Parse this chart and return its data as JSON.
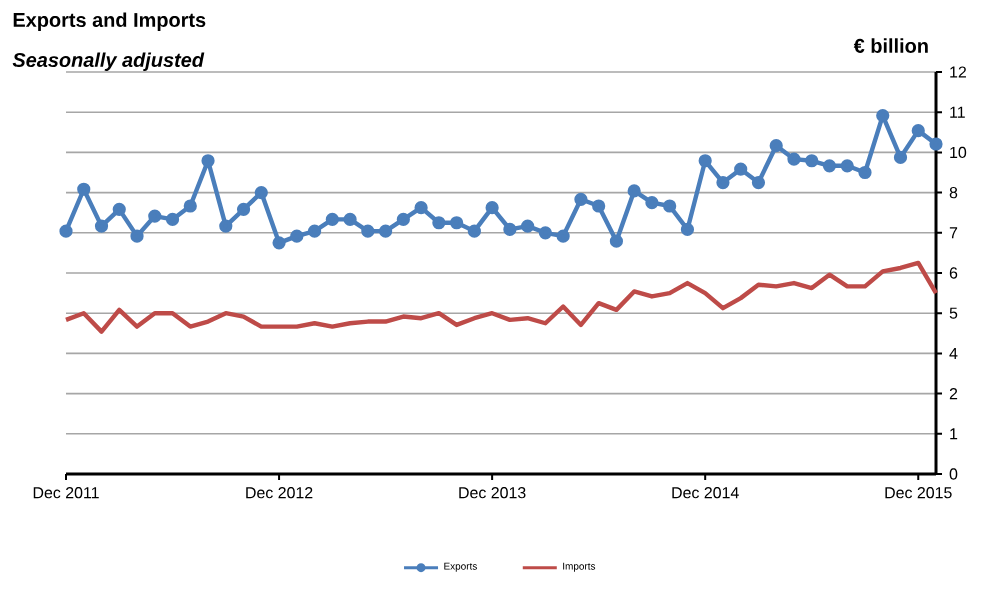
{
  "chart_data": {
    "type": "line",
    "title": "Exports  and Imports",
    "subtitle": "Seasonally  adjusted",
    "ylabel": "€ billion",
    "categories": [
      "Dec 2011",
      null,
      null,
      null,
      null,
      null,
      null,
      null,
      null,
      null,
      null,
      null,
      "Dec 2012",
      null,
      null,
      null,
      null,
      null,
      null,
      null,
      null,
      null,
      null,
      null,
      "Dec 2013",
      null,
      null,
      null,
      null,
      null,
      null,
      null,
      null,
      null,
      null,
      null,
      "Dec 2014",
      null,
      null,
      null,
      null,
      null,
      null,
      null,
      null,
      null,
      null,
      null,
      "Dec 2015",
      null
    ],
    "series": [
      {
        "name": "Exports",
        "color": "#4a7ebb",
        "marker": "circle",
        "values": [
          7.25,
          8.5,
          7.4,
          7.9,
          7.1,
          7.7,
          7.6,
          8.0,
          9.35,
          7.4,
          7.9,
          8.4,
          6.9,
          7.1,
          7.25,
          7.6,
          7.6,
          7.25,
          7.25,
          7.6,
          7.95,
          7.5,
          7.5,
          7.25,
          7.95,
          7.3,
          7.4,
          7.2,
          7.1,
          8.2,
          8.0,
          6.95,
          8.45,
          8.1,
          8.0,
          7.3,
          9.35,
          8.7,
          9.1,
          8.7,
          9.8,
          9.4,
          9.35,
          9.2,
          9.2,
          9.0,
          10.7,
          9.45,
          10.25,
          9.85
        ]
      },
      {
        "name": "Imports",
        "color": "#be4b48",
        "marker": "none",
        "values": [
          4.6,
          4.8,
          4.25,
          4.9,
          4.4,
          4.8,
          4.8,
          4.4,
          4.55,
          4.8,
          4.7,
          4.4,
          4.4,
          4.4,
          4.5,
          4.4,
          4.5,
          4.55,
          4.55,
          4.7,
          4.65,
          4.8,
          4.45,
          4.65,
          4.8,
          4.6,
          4.65,
          4.5,
          5.0,
          4.45,
          5.1,
          4.9,
          5.45,
          5.3,
          5.4,
          5.7,
          5.4,
          4.95,
          5.25,
          5.65,
          5.6,
          5.7,
          5.55,
          5.95,
          5.6,
          5.6,
          6.05,
          6.15,
          6.3,
          5.4
        ]
      }
    ],
    "ylim": [
      0,
      12
    ],
    "yticks": [
      0,
      {
        "value": 1.2,
        "label": "1"
      },
      {
        "value": 2.4,
        "label": "2"
      },
      {
        "value": 3.6,
        "label": "4"
      },
      {
        "value": 4.8,
        "label": "5"
      },
      6,
      {
        "value": 7.2,
        "label": "7"
      },
      {
        "value": 8.4,
        "label": "8"
      },
      {
        "value": 9.6,
        "label": "10"
      },
      {
        "value": 10.8,
        "label": "11"
      },
      12
    ],
    "grid": "y",
    "legend": "bottom"
  }
}
